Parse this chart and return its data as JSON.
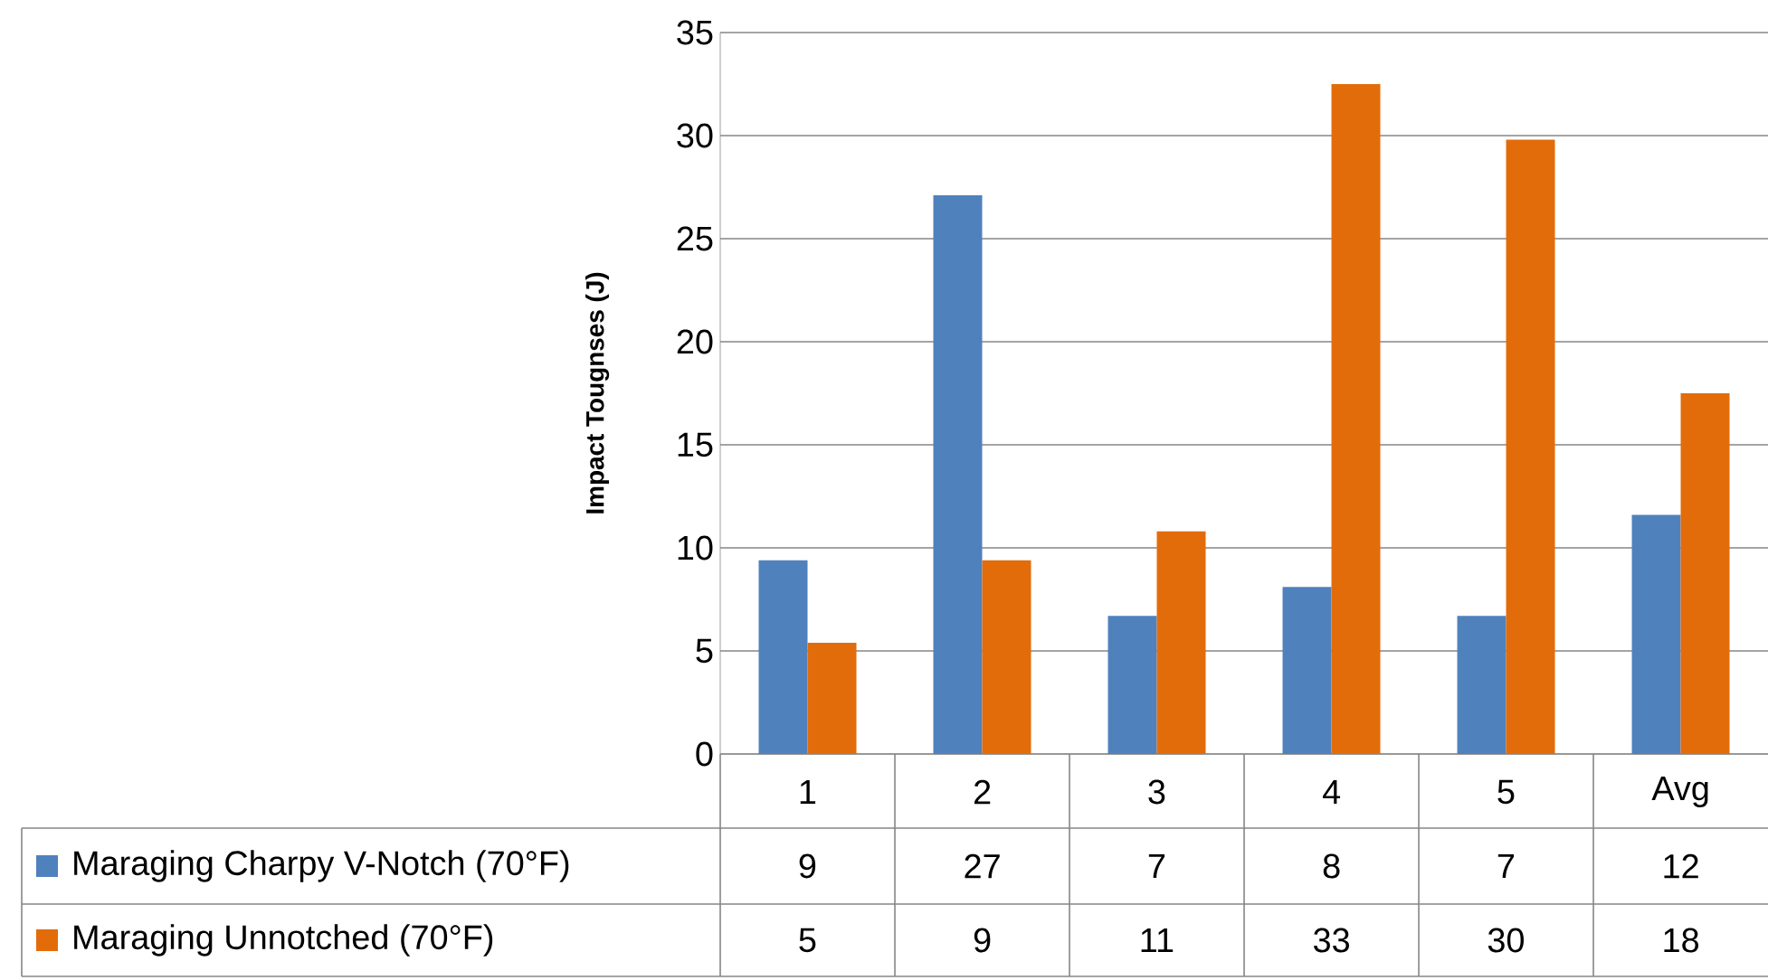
{
  "chart_data": {
    "type": "bar",
    "ylabel": "Impact Tougnses (J)",
    "categories": [
      "1",
      "2",
      "3",
      "4",
      "5",
      "Avg"
    ],
    "series": [
      {
        "name": "Maraging Charpy V-Notch (70°F)",
        "color": "#4f81bd",
        "values": [
          9.4,
          27.1,
          6.7,
          8.1,
          6.7,
          11.6
        ],
        "value_labels": [
          "9",
          "27",
          "7",
          "8",
          "7",
          "12"
        ]
      },
      {
        "name": "Maraging Unnotched (70°F)",
        "color": "#e36c0a",
        "values": [
          5.4,
          9.4,
          10.8,
          32.5,
          29.8,
          17.5
        ],
        "value_labels": [
          "5",
          "9",
          "11",
          "33",
          "30",
          "18"
        ]
      }
    ],
    "ylim": [
      0,
      35
    ],
    "yticks": [
      0,
      5,
      10,
      15,
      20,
      25,
      30,
      35
    ],
    "grid": "y",
    "legend": "bottom"
  }
}
